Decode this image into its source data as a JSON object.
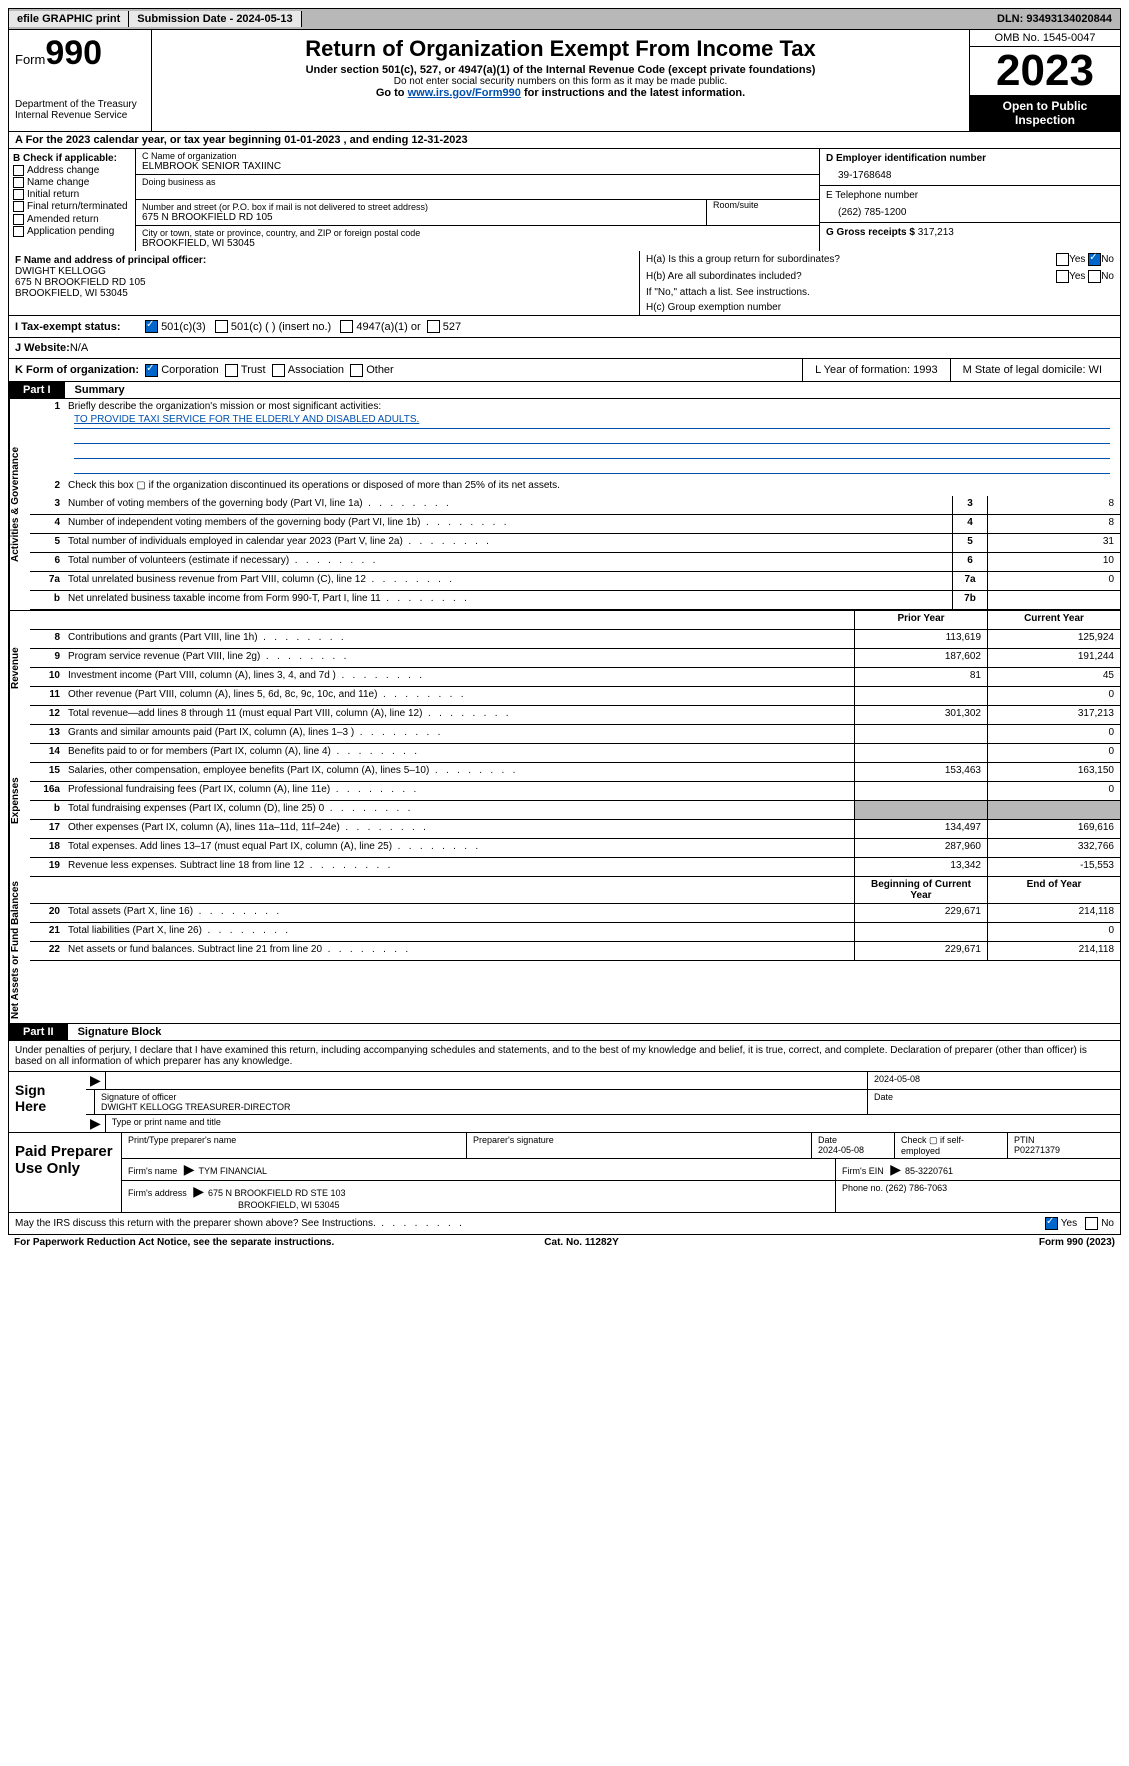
{
  "top": {
    "efile": "efile GRAPHIC print",
    "sub_date_label": "Submission Date - 2024-05-13",
    "dln": "DLN: 93493134020844"
  },
  "header": {
    "form_word": "Form",
    "form_num": "990",
    "dept": "Department of the Treasury Internal Revenue Service",
    "title": "Return of Organization Exempt From Income Tax",
    "sub1": "Under section 501(c), 527, or 4947(a)(1) of the Internal Revenue Code (except private foundations)",
    "sub2": "Do not enter social security numbers on this form as it may be made public.",
    "sub3_pre": "Go to ",
    "sub3_link": "www.irs.gov/Form990",
    "sub3_post": " for instructions and the latest information.",
    "omb": "OMB No. 1545-0047",
    "year": "2023",
    "open": "Open to Public Inspection"
  },
  "rowA": "A  For the 2023 calendar year, or tax year beginning 01-01-2023    , and ending 12-31-2023",
  "colB": {
    "title": "B Check if applicable:",
    "items": [
      "Address change",
      "Name change",
      "Initial return",
      "Final return/terminated",
      "Amended return",
      "Application pending"
    ]
  },
  "colC": {
    "name_label": "C Name of organization",
    "name": "ELMBROOK SENIOR TAXIINC",
    "dba_label": "Doing business as",
    "addr_label": "Number and street (or P.O. box if mail is not delivered to street address)",
    "addr": "675 N BROOKFIELD RD 105",
    "room_label": "Room/suite",
    "city_label": "City or town, state or province, country, and ZIP or foreign postal code",
    "city": "BROOKFIELD, WI  53045"
  },
  "colDE": {
    "d_label": "D Employer identification number",
    "d_val": "39-1768648",
    "e_label": "E Telephone number",
    "e_val": "(262) 785-1200",
    "g_label": "G Gross receipts $ ",
    "g_val": "317,213"
  },
  "rowF": {
    "label": "F  Name and address of principal officer:",
    "name": "DWIGHT KELLOGG",
    "addr1": "675 N BROOKFIELD RD 105",
    "addr2": "BROOKFIELD, WI  53045",
    "ha": "H(a)  Is this a group return for subordinates?",
    "hb": "H(b)  Are all subordinates included?",
    "hb_note": "If \"No,\" attach a list. See instructions.",
    "hc": "H(c)  Group exemption number  "
  },
  "rowI": {
    "label": "I    Tax-exempt status:",
    "opts": [
      "501(c)(3)",
      "501(c) (  ) (insert no.)",
      "4947(a)(1) or",
      "527"
    ]
  },
  "rowJ": {
    "label": "J    Website:  ",
    "val": "N/A"
  },
  "rowK": {
    "label": "K Form of organization:",
    "opts": [
      "Corporation",
      "Trust",
      "Association",
      "Other"
    ],
    "L": "L Year of formation: 1993",
    "M": "M State of legal domicile: WI"
  },
  "part1": {
    "tab": "Part I",
    "title": "Summary"
  },
  "mission": {
    "q": "Briefly describe the organization's mission or most significant activities:",
    "a": "TO PROVIDE TAXI SERVICE FOR THE ELDERLY AND DISABLED ADULTS."
  },
  "gov_rows": [
    {
      "n": "2",
      "desc": "Check this box ▢ if the organization discontinued its operations or disposed of more than 25% of its net assets."
    },
    {
      "n": "3",
      "desc": "Number of voting members of the governing body (Part VI, line 1a)",
      "box": "3",
      "v": "8"
    },
    {
      "n": "4",
      "desc": "Number of independent voting members of the governing body (Part VI, line 1b)",
      "box": "4",
      "v": "8"
    },
    {
      "n": "5",
      "desc": "Total number of individuals employed in calendar year 2023 (Part V, line 2a)",
      "box": "5",
      "v": "31"
    },
    {
      "n": "6",
      "desc": "Total number of volunteers (estimate if necessary)",
      "box": "6",
      "v": "10"
    },
    {
      "n": "7a",
      "desc": "Total unrelated business revenue from Part VIII, column (C), line 12",
      "box": "7a",
      "v": "0"
    },
    {
      "n": "b",
      "desc": "Net unrelated business taxable income from Form 990-T, Part I, line 11",
      "box": "7b",
      "v": ""
    }
  ],
  "col_headers": {
    "py": "Prior Year",
    "cy": "Current Year"
  },
  "rev_rows": [
    {
      "n": "8",
      "desc": "Contributions and grants (Part VIII, line 1h)",
      "py": "113,619",
      "cy": "125,924"
    },
    {
      "n": "9",
      "desc": "Program service revenue (Part VIII, line 2g)",
      "py": "187,602",
      "cy": "191,244"
    },
    {
      "n": "10",
      "desc": "Investment income (Part VIII, column (A), lines 3, 4, and 7d )",
      "py": "81",
      "cy": "45"
    },
    {
      "n": "11",
      "desc": "Other revenue (Part VIII, column (A), lines 5, 6d, 8c, 9c, 10c, and 11e)",
      "py": "",
      "cy": "0"
    },
    {
      "n": "12",
      "desc": "Total revenue—add lines 8 through 11 (must equal Part VIII, column (A), line 12)",
      "py": "301,302",
      "cy": "317,213"
    }
  ],
  "exp_rows": [
    {
      "n": "13",
      "desc": "Grants and similar amounts paid (Part IX, column (A), lines 1–3 )",
      "py": "",
      "cy": "0"
    },
    {
      "n": "14",
      "desc": "Benefits paid to or for members (Part IX, column (A), line 4)",
      "py": "",
      "cy": "0"
    },
    {
      "n": "15",
      "desc": "Salaries, other compensation, employee benefits (Part IX, column (A), lines 5–10)",
      "py": "153,463",
      "cy": "163,150"
    },
    {
      "n": "16a",
      "desc": "Professional fundraising fees (Part IX, column (A), line 11e)",
      "py": "",
      "cy": "0"
    },
    {
      "n": "b",
      "desc": "Total fundraising expenses (Part IX, column (D), line 25) 0",
      "py": "shade",
      "cy": "shade"
    },
    {
      "n": "17",
      "desc": "Other expenses (Part IX, column (A), lines 11a–11d, 11f–24e)",
      "py": "134,497",
      "cy": "169,616"
    },
    {
      "n": "18",
      "desc": "Total expenses. Add lines 13–17 (must equal Part IX, column (A), line 25)",
      "py": "287,960",
      "cy": "332,766"
    },
    {
      "n": "19",
      "desc": "Revenue less expenses. Subtract line 18 from line 12",
      "py": "13,342",
      "cy": "-15,553"
    }
  ],
  "na_headers": {
    "b": "Beginning of Current Year",
    "e": "End of Year"
  },
  "na_rows": [
    {
      "n": "20",
      "desc": "Total assets (Part X, line 16)",
      "py": "229,671",
      "cy": "214,118"
    },
    {
      "n": "21",
      "desc": "Total liabilities (Part X, line 26)",
      "py": "",
      "cy": "0"
    },
    {
      "n": "22",
      "desc": "Net assets or fund balances. Subtract line 21 from line 20",
      "py": "229,671",
      "cy": "214,118"
    }
  ],
  "part2": {
    "tab": "Part II",
    "title": "Signature Block"
  },
  "perjury": "Under penalties of perjury, I declare that I have examined this return, including accompanying schedules and statements, and to the best of my knowledge and belief, it is true, correct, and complete. Declaration of preparer (other than officer) is based on all information of which preparer has any knowledge.",
  "sign": {
    "left": "Sign Here",
    "date": "2024-05-08",
    "sig_label": "Signature of officer",
    "name": "DWIGHT KELLOGG  TREASURER-DIRECTOR",
    "tp_label": "Type or print name and title",
    "date_label": "Date"
  },
  "paid": {
    "left": "Paid Preparer Use Only",
    "h1": "Print/Type preparer's name",
    "h2": "Preparer's signature",
    "h3": "Date",
    "h3v": "2024-05-08",
    "h4": "Check ▢ if self-employed",
    "h5": "PTIN",
    "h5v": "P02271379",
    "firm_label": "Firm's name    ",
    "firm": "TYM FINANCIAL",
    "ein_label": "Firm's EIN  ",
    "ein": "85-3220761",
    "addr_label": "Firm's address ",
    "addr1": "675 N BROOKFIELD RD STE 103",
    "addr2": "BROOKFIELD, WI  53045",
    "phone_label": "Phone no. ",
    "phone": "(262) 786-7063"
  },
  "discuss": "May the IRS discuss this return with the preparer shown above? See Instructions.",
  "footer": {
    "l": "For Paperwork Reduction Act Notice, see the separate instructions.",
    "c": "Cat. No. 11282Y",
    "r": "Form 990 (2023)"
  },
  "labels": {
    "yes": "Yes",
    "no": "No",
    "vert_gov": "Activities & Governance",
    "vert_rev": "Revenue",
    "vert_exp": "Expenses",
    "vert_na": "Net Assets or Fund Balances"
  },
  "colors": {
    "link": "#0050b0",
    "shade": "#b8b8b8",
    "check": "#0066cc"
  }
}
